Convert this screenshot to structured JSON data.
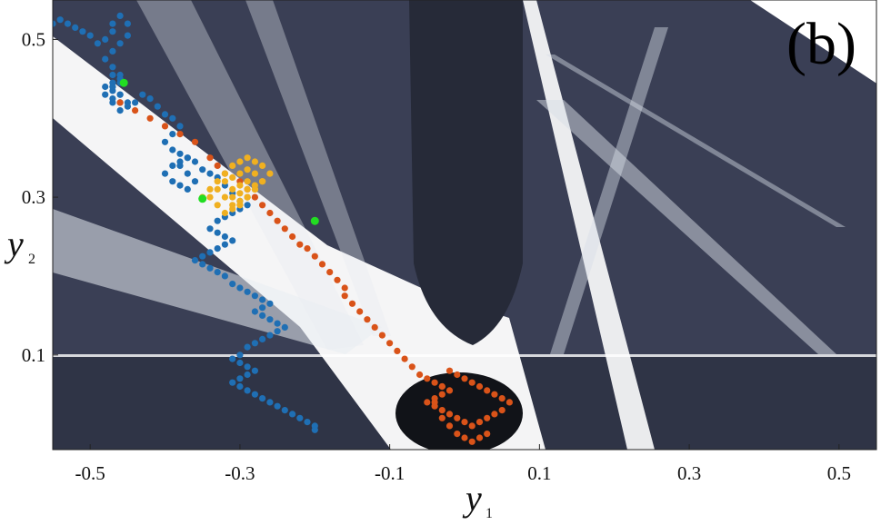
{
  "chart_data": {
    "type": "scatter",
    "title": "",
    "panel_label": "(b)",
    "xlabel": "y",
    "xlabel_sub": "1",
    "ylabel": "y",
    "ylabel_sub": "2",
    "xlim": [
      -0.55,
      0.55
    ],
    "ylim": [
      -0.02,
      0.55
    ],
    "xticks": [
      -0.5,
      -0.3,
      -0.1,
      0.1,
      0.3,
      0.5
    ],
    "xtick_labels": [
      "-0.5",
      "-0.3",
      "-0.1",
      "0.1",
      "0.3",
      "0.5"
    ],
    "yticks": [
      0.1,
      0.3,
      0.5
    ],
    "ytick_labels": [
      "0.1",
      "0.3",
      "0.5"
    ],
    "grid": false,
    "background": "dark basin-of-attraction map (white and slate-grey fractal regions)",
    "colors": {
      "background_dark": "#3a3f55",
      "background_light": "#ffffff",
      "series_blue": "#1f6fb4",
      "series_orange": "#d95319",
      "series_yellow": "#f0b020",
      "series_green": "#22dd22"
    },
    "series": [
      {
        "color": "#1f6fb4",
        "x": [
          -0.55,
          -0.54,
          -0.53,
          -0.52,
          -0.51,
          -0.5,
          -0.49,
          -0.48,
          -0.47,
          -0.47,
          -0.46,
          -0.45,
          -0.45,
          -0.46,
          -0.47,
          -0.48,
          -0.47,
          -0.46,
          -0.47,
          -0.48,
          -0.47,
          -0.46,
          -0.47,
          -0.46,
          -0.45,
          -0.46,
          -0.47,
          -0.46,
          -0.47,
          -0.46,
          -0.47,
          -0.48,
          -0.47,
          -0.46,
          -0.45,
          -0.44,
          -0.43,
          -0.42,
          -0.41,
          -0.4,
          -0.39,
          -0.38,
          -0.39,
          -0.4,
          -0.39,
          -0.38,
          -0.37,
          -0.38,
          -0.39,
          -0.4,
          -0.39,
          -0.38,
          -0.37,
          -0.36,
          -0.37,
          -0.38,
          -0.37,
          -0.36,
          -0.35,
          -0.34,
          -0.33,
          -0.32,
          -0.31,
          -0.3,
          -0.29,
          -0.3,
          -0.31,
          -0.32,
          -0.33,
          -0.34,
          -0.33,
          -0.32,
          -0.31,
          -0.32,
          -0.33,
          -0.34,
          -0.35,
          -0.36,
          -0.35,
          -0.34,
          -0.33,
          -0.32,
          -0.31,
          -0.3,
          -0.29,
          -0.28,
          -0.27,
          -0.26,
          -0.27,
          -0.28,
          -0.27,
          -0.26,
          -0.25,
          -0.24,
          -0.25,
          -0.26,
          -0.27,
          -0.28,
          -0.29,
          -0.3,
          -0.31,
          -0.3,
          -0.29,
          -0.28,
          -0.29,
          -0.3,
          -0.31,
          -0.3,
          -0.29,
          -0.28,
          -0.27,
          -0.26,
          -0.25,
          -0.24,
          -0.23,
          -0.22,
          -0.21,
          -0.2,
          -0.2
        ],
        "y": [
          0.52,
          0.525,
          0.52,
          0.515,
          0.51,
          0.505,
          0.495,
          0.5,
          0.51,
          0.52,
          0.53,
          0.52,
          0.505,
          0.495,
          0.485,
          0.475,
          0.465,
          0.455,
          0.445,
          0.44,
          0.435,
          0.43,
          0.42,
          0.41,
          0.42,
          0.43,
          0.44,
          0.45,
          0.455,
          0.445,
          0.44,
          0.43,
          0.425,
          0.42,
          0.415,
          0.42,
          0.43,
          0.425,
          0.415,
          0.405,
          0.4,
          0.39,
          0.38,
          0.37,
          0.36,
          0.355,
          0.35,
          0.345,
          0.34,
          0.33,
          0.32,
          0.315,
          0.31,
          0.32,
          0.33,
          0.34,
          0.35,
          0.345,
          0.335,
          0.33,
          0.325,
          0.315,
          0.305,
          0.295,
          0.29,
          0.285,
          0.28,
          0.275,
          0.27,
          0.26,
          0.255,
          0.25,
          0.245,
          0.24,
          0.235,
          0.23,
          0.225,
          0.22,
          0.215,
          0.21,
          0.205,
          0.2,
          0.19,
          0.185,
          0.18,
          0.175,
          0.17,
          0.165,
          0.16,
          0.155,
          0.15,
          0.145,
          0.14,
          0.135,
          0.13,
          0.125,
          0.12,
          0.115,
          0.11,
          0.1,
          0.095,
          0.09,
          0.085,
          0.08,
          0.075,
          0.07,
          0.065,
          0.06,
          0.055,
          0.05,
          0.045,
          0.04,
          0.035,
          0.03,
          0.025,
          0.02,
          0.015,
          0.01,
          0.005
        ]
      },
      {
        "color": "#d95319",
        "x": [
          -0.46,
          -0.44,
          -0.42,
          -0.4,
          -0.38,
          -0.36,
          -0.34,
          -0.33,
          -0.32,
          -0.3,
          -0.29,
          -0.28,
          -0.27,
          -0.26,
          -0.25,
          -0.24,
          -0.23,
          -0.22,
          -0.21,
          -0.2,
          -0.19,
          -0.18,
          -0.17,
          -0.16,
          -0.16,
          -0.15,
          -0.14,
          -0.13,
          -0.12,
          -0.11,
          -0.1,
          -0.09,
          -0.08,
          -0.07,
          -0.06,
          -0.05,
          -0.04,
          -0.03,
          -0.02,
          -0.03,
          -0.04,
          -0.05,
          -0.04,
          -0.03,
          -0.02,
          -0.01,
          0.0,
          0.01,
          0.02,
          0.03,
          0.04,
          0.05,
          0.06,
          0.05,
          0.04,
          0.03,
          0.02,
          0.01,
          0.0,
          -0.01,
          -0.02,
          -0.03,
          -0.04,
          -0.03,
          -0.02,
          -0.01,
          0.0,
          0.01,
          0.02,
          0.03
        ],
        "y": [
          0.42,
          0.41,
          0.4,
          0.39,
          0.38,
          0.37,
          0.35,
          0.34,
          0.33,
          0.32,
          0.31,
          0.3,
          0.29,
          0.28,
          0.27,
          0.26,
          0.25,
          0.24,
          0.235,
          0.225,
          0.215,
          0.205,
          0.195,
          0.185,
          0.175,
          0.165,
          0.155,
          0.145,
          0.135,
          0.125,
          0.115,
          0.105,
          0.095,
          0.085,
          0.075,
          0.07,
          0.065,
          0.06,
          0.055,
          0.05,
          0.045,
          0.04,
          0.035,
          0.03,
          0.025,
          0.02,
          0.015,
          0.01,
          0.015,
          0.02,
          0.025,
          0.03,
          0.04,
          0.045,
          0.05,
          0.055,
          0.06,
          0.065,
          0.07,
          0.075,
          0.08,
          0.06,
          0.04,
          0.02,
          0.01,
          0.0,
          -0.005,
          -0.01,
          -0.005,
          0.0
        ]
      },
      {
        "color": "#f0b020",
        "x": [
          -0.35,
          -0.34,
          -0.33,
          -0.32,
          -0.31,
          -0.3,
          -0.29,
          -0.28,
          -0.27,
          -0.26,
          -0.27,
          -0.28,
          -0.29,
          -0.3,
          -0.31,
          -0.32,
          -0.33,
          -0.34,
          -0.33,
          -0.32,
          -0.31,
          -0.3,
          -0.29,
          -0.28,
          -0.27,
          -0.28,
          -0.29,
          -0.3,
          -0.31,
          -0.32,
          -0.31,
          -0.3,
          -0.29,
          -0.28,
          -0.29,
          -0.3,
          -0.31,
          -0.3,
          -0.29,
          -0.28
        ],
        "y": [
          0.3,
          0.31,
          0.32,
          0.33,
          0.34,
          0.345,
          0.35,
          0.345,
          0.34,
          0.33,
          0.32,
          0.31,
          0.3,
          0.29,
          0.285,
          0.28,
          0.29,
          0.3,
          0.31,
          0.32,
          0.325,
          0.33,
          0.335,
          0.33,
          0.32,
          0.31,
          0.3,
          0.295,
          0.29,
          0.3,
          0.31,
          0.315,
          0.32,
          0.315,
          0.31,
          0.305,
          0.3,
          0.29,
          0.3,
          0.31
        ]
      },
      {
        "color": "#22dd22",
        "x": [
          -0.455,
          -0.35,
          -0.2
        ],
        "y": [
          0.445,
          0.298,
          0.27
        ]
      }
    ]
  }
}
